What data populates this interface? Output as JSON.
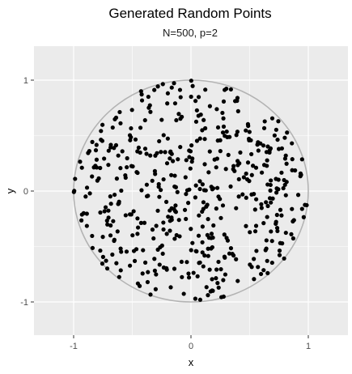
{
  "chart_data": {
    "type": "scatter",
    "title": "Generated Random Points",
    "subtitle": "N=500, p=2",
    "xlabel": "x",
    "ylabel": "y",
    "xlim": [
      -1.33,
      1.33
    ],
    "ylim": [
      -1.33,
      1.33
    ],
    "x_ticks": [
      -1,
      0,
      1
    ],
    "y_ticks": [
      -1,
      0,
      1
    ],
    "x_tick_labels": [
      "-1",
      "0",
      "1"
    ],
    "y_tick_labels": [
      "-1",
      "0",
      "1"
    ],
    "grid": true,
    "legend": "none",
    "background_color": "#ebebeb",
    "grid_color": "#ffffff",
    "point_color": "#000000",
    "circle_color": "#b3b3b3",
    "unit_circle": {
      "center": [
        0,
        0
      ],
      "radius": 1
    },
    "n_points": 500
  }
}
